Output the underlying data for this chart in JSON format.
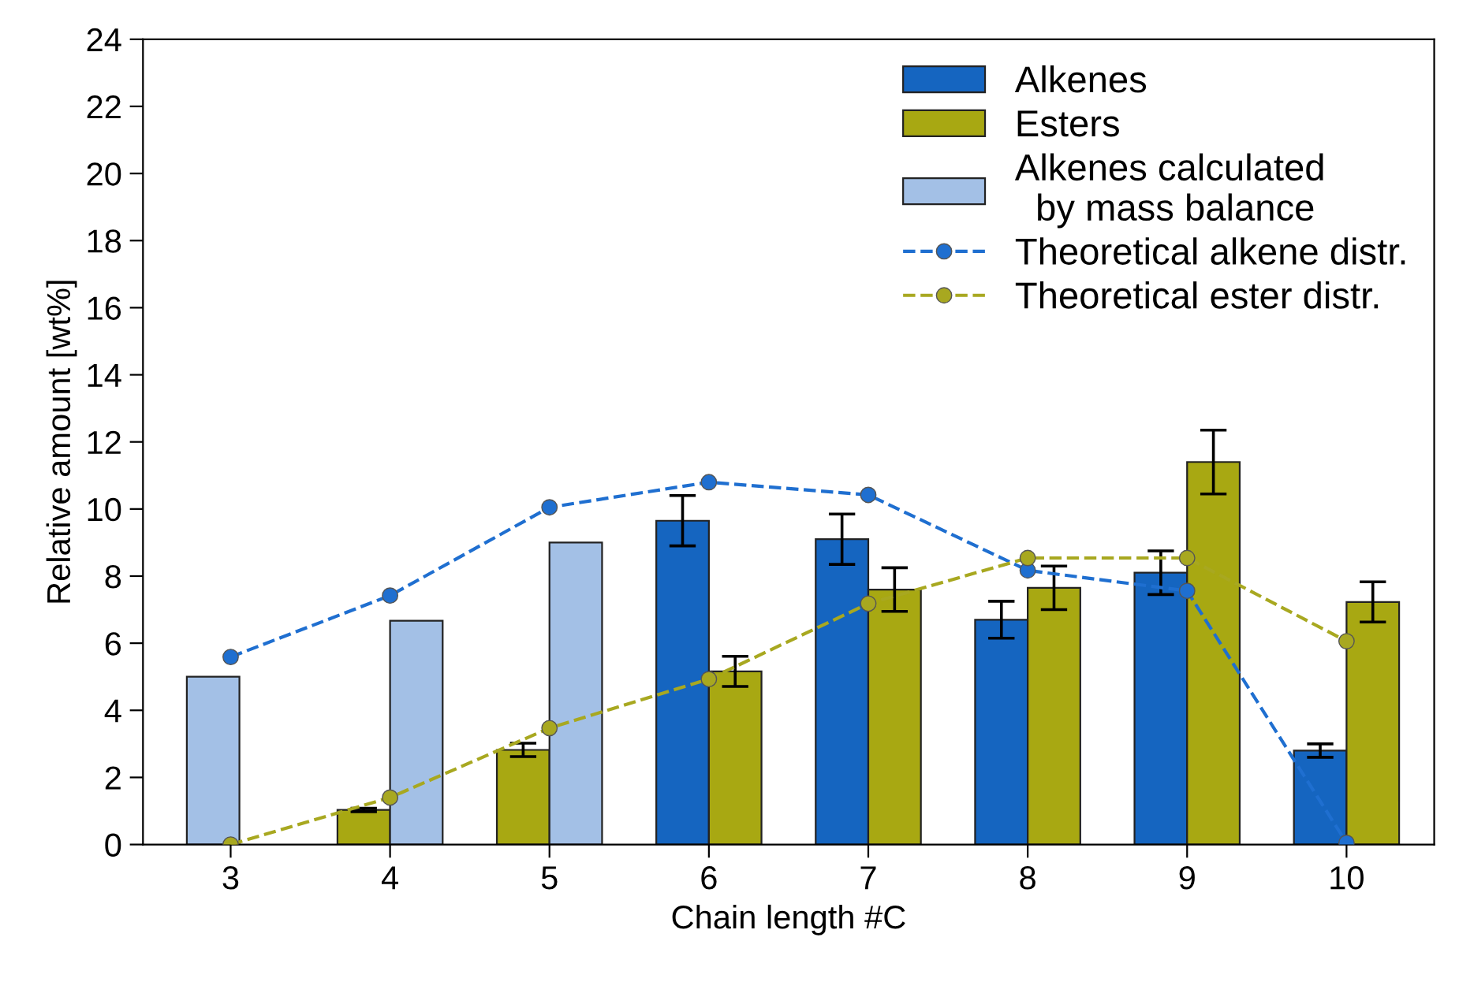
{
  "chart_data": {
    "type": "bar",
    "xlabel": "Chain length #C",
    "ylabel": "Relative amount [wt%]",
    "categories": [
      "3",
      "4",
      "5",
      "6",
      "7",
      "8",
      "9",
      "10"
    ],
    "series": [
      {
        "name": "Alkenes",
        "color": "#1565c0",
        "values": [
          null,
          null,
          null,
          9.65,
          9.1,
          6.7,
          8.1,
          2.8
        ],
        "errors": [
          null,
          null,
          null,
          0.75,
          0.75,
          0.55,
          0.65,
          0.2
        ]
      },
      {
        "name": "Esters",
        "color": "#a8a812",
        "values": [
          null,
          1.03,
          2.82,
          5.16,
          7.6,
          7.65,
          11.4,
          7.23
        ],
        "errors": [
          null,
          0.05,
          0.2,
          0.45,
          0.65,
          0.65,
          0.95,
          0.6
        ]
      },
      {
        "name": "Alkenes calculated\n  by mass balance",
        "color": "#a3c0e6",
        "values": [
          5.0,
          6.67,
          9.0,
          null,
          null,
          null,
          null,
          null
        ]
      },
      {
        "name": "Theoretical alkene distr.",
        "type": "line",
        "color": "#1f6fd0",
        "marker": "circle",
        "line_style": "dashed",
        "values": [
          5.59,
          7.42,
          10.05,
          10.8,
          10.42,
          8.17,
          7.56,
          0.05
        ]
      },
      {
        "name": "Theoretical ester distr.",
        "type": "line",
        "color": "#a8a820",
        "marker": "circle",
        "line_style": "dashed",
        "values": [
          0.0,
          1.4,
          3.47,
          4.93,
          7.18,
          8.54,
          8.54,
          6.06
        ]
      }
    ],
    "ylim": [
      0,
      24
    ],
    "yticks": [
      0,
      2,
      4,
      6,
      8,
      10,
      12,
      14,
      16,
      18,
      20,
      22,
      24
    ],
    "legend": "top right",
    "grid": false
  }
}
